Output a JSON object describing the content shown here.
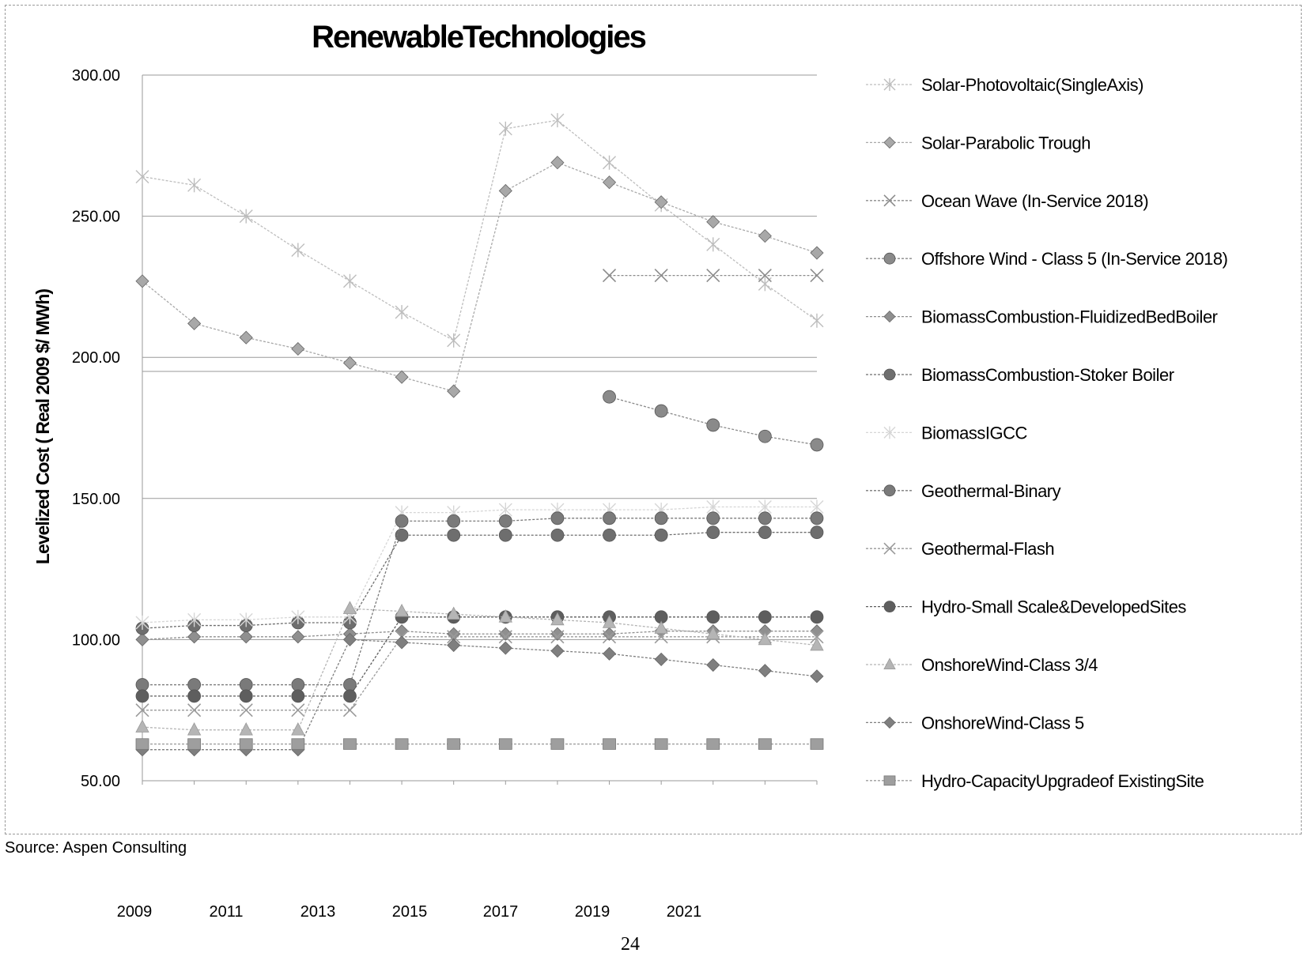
{
  "page_number": "24",
  "source": "Source: Aspen Consulting",
  "chart_data": {
    "type": "line",
    "title": "RenewableTechnologies",
    "ylabel": "Levelized Cost ( Real 2009 $/ MWh)",
    "xlabel": "",
    "y_ticks": [
      "300.00",
      "250.00",
      "200.00",
      "150.00",
      "100.00",
      "50.00"
    ],
    "x_tick_labels": [
      "2009",
      "2011",
      "2013",
      "2015",
      "2017",
      "2019",
      "2021"
    ],
    "legend_position": "right",
    "grid": true,
    "x": [
      2009,
      2010,
      2011,
      2012,
      2013,
      2014,
      2015,
      2016,
      2017,
      2018,
      2019,
      2020,
      2021,
      2022
    ],
    "series": [
      {
        "name": "Solar-Photovoltaic(SingleAxis)",
        "marker": "asterisk",
        "color": "#bdbdbd",
        "values": [
          264,
          261,
          250,
          238,
          227,
          216,
          206,
          281,
          284,
          269,
          254,
          240,
          226,
          213
        ]
      },
      {
        "name": "Solar-Parabolic Trough",
        "marker": "diamond",
        "color": "#a8a8a8",
        "values": [
          227,
          212,
          207,
          203,
          198,
          193,
          188,
          259,
          269,
          262,
          255,
          248,
          243,
          237
        ]
      },
      {
        "name": "Ocean Wave (In-Service  2018)",
        "marker": "cross",
        "color": "#8c8c8c",
        "values": [
          null,
          null,
          null,
          null,
          null,
          null,
          null,
          null,
          null,
          229,
          229,
          229,
          229,
          229
        ]
      },
      {
        "name": "Offshore  Wind - Class 5 (In-Service  2018)",
        "marker": "circle",
        "color": "#8a8a8a",
        "values": [
          null,
          null,
          null,
          null,
          null,
          null,
          null,
          null,
          null,
          186,
          181,
          176,
          172,
          169
        ]
      },
      {
        "name": "BiomassCombustion-FluidizedBedBoiler",
        "marker": "diamond",
        "color": "#8f8f8f",
        "values": [
          100,
          101,
          101,
          101,
          102,
          103,
          102,
          102,
          102,
          102,
          103,
          103,
          103,
          103
        ]
      },
      {
        "name": "BiomassCombustion-Stoker Boiler",
        "marker": "circle",
        "color": "#6e6e6e",
        "values": [
          104,
          105,
          105,
          106,
          106,
          137,
          137,
          137,
          137,
          137,
          137,
          138,
          138,
          138
        ]
      },
      {
        "name": "BiomassIGCC",
        "marker": "asterisk",
        "color": "#d6d6d6",
        "values": [
          106,
          107,
          107,
          108,
          108,
          145,
          145,
          146,
          146,
          146,
          146,
          147,
          147,
          147
        ]
      },
      {
        "name": "Geothermal-Binary",
        "marker": "circle",
        "color": "#7a7a7a",
        "values": [
          84,
          84,
          84,
          84,
          84,
          142,
          142,
          142,
          143,
          143,
          143,
          143,
          143,
          143
        ]
      },
      {
        "name": "Geothermal-Flash",
        "marker": "cross",
        "color": "#9a9a9a",
        "values": [
          75,
          75,
          75,
          75,
          75,
          101,
          101,
          101,
          101,
          101,
          101,
          101,
          101,
          101
        ]
      },
      {
        "name": "Hydro-Small Scale&DevelopedSites",
        "marker": "circle",
        "color": "#5e5e5e",
        "values": [
          80,
          80,
          80,
          80,
          80,
          108,
          108,
          108,
          108,
          108,
          108,
          108,
          108,
          108
        ]
      },
      {
        "name": "OnshoreWind-Class 3/4",
        "marker": "triangle",
        "color": "#b5b5b5",
        "values": [
          69,
          68,
          68,
          68,
          111,
          110,
          109,
          108,
          107,
          106,
          104,
          102,
          100,
          98
        ]
      },
      {
        "name": "OnshoreWind-Class 5",
        "marker": "diamond",
        "color": "#7f7f7f",
        "values": [
          61,
          61,
          61,
          61,
          100,
          99,
          98,
          97,
          96,
          95,
          93,
          91,
          89,
          87
        ]
      },
      {
        "name": "Hydro-CapacityUpgradeof ExistingSite",
        "marker": "square",
        "color": "#9e9e9e",
        "values": [
          63,
          63,
          63,
          63,
          63,
          63,
          63,
          63,
          63,
          63,
          63,
          63,
          63,
          63
        ]
      }
    ]
  }
}
